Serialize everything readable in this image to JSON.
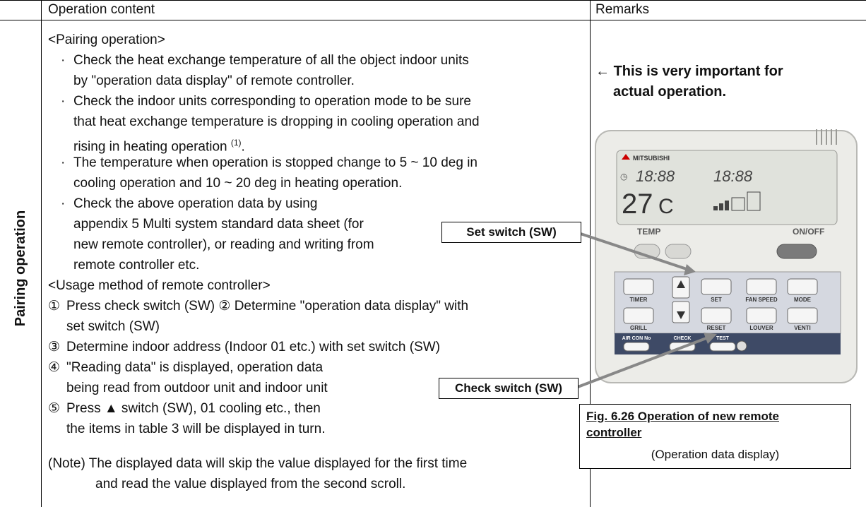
{
  "header": {
    "col1": "Operation content",
    "col2": "Remarks"
  },
  "row_label": "Pairing operation",
  "content": {
    "lines": [
      {
        "text": "<Pairing operation>"
      },
      {
        "marker": "·",
        "text": "Check the heat exchange temperature of all the object indoor units"
      },
      {
        "text": "by \"operation data display\" of remote controller."
      },
      {
        "marker": "·",
        "text": "Check the indoor units corresponding to operation mode to be sure"
      },
      {
        "text": "that heat exchange temperature is dropping in cooling operation and"
      },
      {
        "text": "rising in heating operation",
        "sup": "(1)",
        "tail": "."
      },
      {
        "marker": "·",
        "text": "The temperature when operation is stopped change to 5 ~ 10 deg in"
      },
      {
        "text": "cooling operation and 10 ~ 20 deg in heating operation."
      },
      {
        "marker": "·",
        "text": "Check the above operation data by using"
      },
      {
        "text": "appendix 5 Multi system standard data sheet (for"
      },
      {
        "text": "new remote controller), or reading and writing from"
      },
      {
        "text": "remote controller etc."
      },
      {
        "text": "<Usage method of remote controller>"
      },
      {
        "marker": "①",
        "text": "Press check switch (SW)",
        "marker2": "②",
        "text2": "Determine \"operation data display\" with"
      },
      {
        "text": "set switch (SW)"
      },
      {
        "marker": "③",
        "text": "Determine indoor address (Indoor 01 etc.) with set switch (SW)"
      },
      {
        "marker": "④",
        "text": "\"Reading data\" is displayed, operation data"
      },
      {
        "text": "being read from outdoor unit and indoor unit"
      },
      {
        "marker": "⑤",
        "text": "Press ▲ switch (SW), 01 cooling etc., then"
      },
      {
        "text": "the items in table 3 will be displayed in turn."
      },
      {
        "text": "(Note) The displayed data will skip the value displayed for the first time"
      },
      {
        "text": "and read the value displayed from the second scroll."
      }
    ]
  },
  "remarks": {
    "arrow": "←",
    "note_line1": "This is very important for",
    "note_line2": "actual operation."
  },
  "callouts": {
    "set_switch": "Set switch (SW)",
    "check_switch": "Check switch (SW)"
  },
  "figure": {
    "caption_line1": "Fig. 6.26 Operation of new remote",
    "caption_line2": "controller",
    "caption_sub": "(Operation data display)",
    "labels": {
      "brand": "MITSUBISHI",
      "temp_value": "27",
      "temp_unit": "C",
      "temp": "TEMP",
      "onoff": "ON/OFF",
      "timer": "TIMER",
      "set": "SET",
      "fan_speed": "FAN SPEED",
      "mode": "MODE",
      "grill": "GRILL",
      "reset": "RESET",
      "louver": "LOUVER",
      "venti": "VENTI",
      "air_con_no": "AIR CON No",
      "check": "CHECK",
      "test": "TEST"
    }
  }
}
